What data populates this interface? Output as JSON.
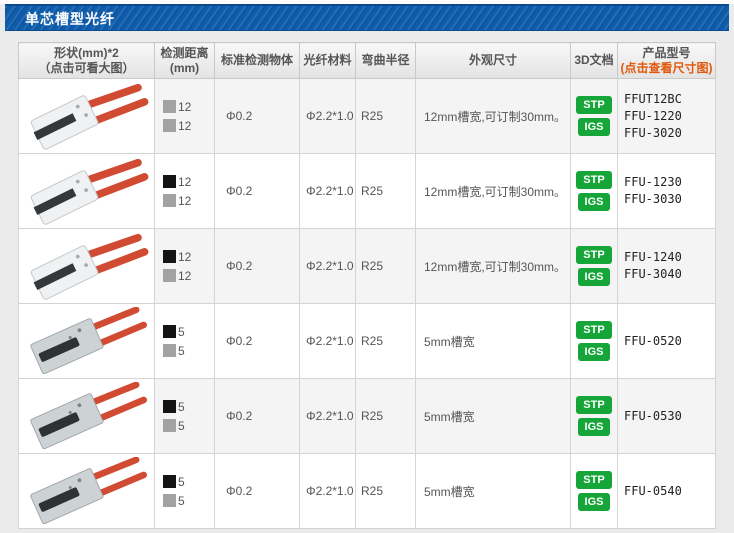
{
  "page": {
    "title": "单芯槽型光纤"
  },
  "colors": {
    "title_bar_blue": "#0e5cab",
    "accent_orange": "#e2580b",
    "doc_button_green": "#16a538",
    "marker_gray": "#a2a2a2",
    "marker_black": "#141414",
    "cable_red": "#d14b33"
  },
  "table": {
    "headers": [
      {
        "line1": "形状(mm)*2",
        "line2": "（点击可看大图）"
      },
      {
        "line1": "检测距离",
        "line2": "(mm)"
      },
      {
        "line1": "标准检测物体",
        "line2": ""
      },
      {
        "line1": "光纤材料",
        "line2": ""
      },
      {
        "line1": "弯曲半径",
        "line2": ""
      },
      {
        "line1": "外观尺寸",
        "line2": ""
      },
      {
        "line1": "3D文档",
        "line2": ""
      },
      {
        "line1": "产品型号",
        "line2": "(点击查看尺寸图)"
      }
    ],
    "rows": [
      {
        "shape": "fork-sensor-photo",
        "distances": [
          {
            "marker_color": "#a2a2a2",
            "value": "12"
          },
          {
            "marker_color": "#a2a2a2",
            "value": "12"
          }
        ],
        "standard_object": "Φ0.2",
        "fiber_material": "Φ2.2*1.0",
        "bend_radius": "R25",
        "dimensions": "12mm槽宽,可订制30mm。",
        "doc_buttons": [
          "STP",
          "IGS"
        ],
        "models": [
          "FFUT12BC",
          "FFU-1220",
          "FFU-3020"
        ]
      },
      {
        "shape": "fork-sensor-photo",
        "distances": [
          {
            "marker_color": "#141414",
            "value": "12"
          },
          {
            "marker_color": "#a2a2a2",
            "value": "12"
          }
        ],
        "standard_object": "Φ0.2",
        "fiber_material": "Φ2.2*1.0",
        "bend_radius": "R25",
        "dimensions": "12mm槽宽,可订制30mm。",
        "doc_buttons": [
          "STP",
          "IGS"
        ],
        "models": [
          "FFU-1230",
          "FFU-3030"
        ]
      },
      {
        "shape": "fork-sensor-photo",
        "distances": [
          {
            "marker_color": "#141414",
            "value": "12"
          },
          {
            "marker_color": "#a2a2a2",
            "value": "12"
          }
        ],
        "standard_object": "Φ0.2",
        "fiber_material": "Φ2.2*1.0",
        "bend_radius": "R25",
        "dimensions": "12mm槽宽,可订制30mm。",
        "doc_buttons": [
          "STP",
          "IGS"
        ],
        "models": [
          "FFU-1240",
          "FFU-3040"
        ]
      },
      {
        "shape": "slot-sensor-photo",
        "distances": [
          {
            "marker_color": "#141414",
            "value": "5"
          },
          {
            "marker_color": "#a2a2a2",
            "value": "5"
          }
        ],
        "standard_object": "Φ0.2",
        "fiber_material": "Φ2.2*1.0",
        "bend_radius": "R25",
        "dimensions": "5mm槽宽",
        "doc_buttons": [
          "STP",
          "IGS"
        ],
        "models": [
          "FFU-0520"
        ]
      },
      {
        "shape": "slot-sensor-photo",
        "distances": [
          {
            "marker_color": "#141414",
            "value": "5"
          },
          {
            "marker_color": "#a2a2a2",
            "value": "5"
          }
        ],
        "standard_object": "Φ0.2",
        "fiber_material": "Φ2.2*1.0",
        "bend_radius": "R25",
        "dimensions": "5mm槽宽",
        "doc_buttons": [
          "STP",
          "IGS"
        ],
        "models": [
          "FFU-0530"
        ]
      },
      {
        "shape": "slot-sensor-photo",
        "distances": [
          {
            "marker_color": "#141414",
            "value": "5"
          },
          {
            "marker_color": "#a2a2a2",
            "value": "5"
          }
        ],
        "standard_object": "Φ0.2",
        "fiber_material": "Φ2.2*1.0",
        "bend_radius": "R25",
        "dimensions": "5mm槽宽",
        "doc_buttons": [
          "STP",
          "IGS"
        ],
        "models": [
          "FFU-0540"
        ]
      }
    ]
  }
}
